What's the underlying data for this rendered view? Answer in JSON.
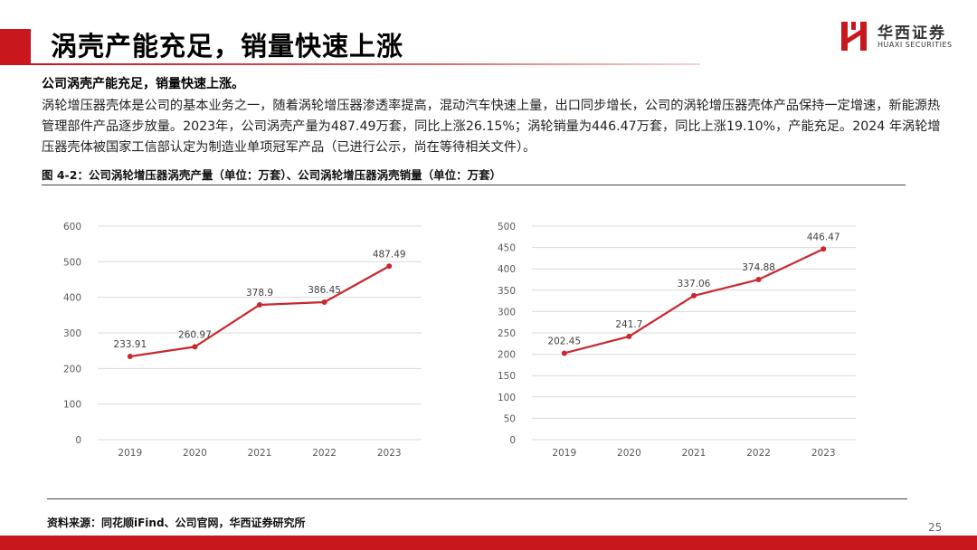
{
  "header": {
    "title": "涡壳产能充足，销量快速上涨",
    "logo_cn": "华西证券",
    "logo_en": "HUAXI SECURITIES",
    "accent_color": "#c8181e"
  },
  "content": {
    "subhead": "公司涡壳产能充足，销量快速上涨。",
    "paragraph": "涡轮增压器壳体是公司的基本业务之一，随着涡轮增压器渗透率提高，混动汽车快速上量，出口同步增长，公司的涡轮增压器壳体产品保持一定增速，新能源热管理部件产品逐步放量。2023年，公司涡壳产量为487.49万套，同比上涨26.15%；涡轮销量为446.47万套，同比上涨19.10%，产能充足。2024 年涡轮增压器壳体被国家工信部认定为制造业单项冠军产品（已进行公示，尚在等待相关文件）。",
    "figure_caption": "图 4-2：公司涡轮增压器涡壳产量（单位：万套）、公司涡轮增压器涡壳销量（单位：万套）",
    "source": "资料来源：同花顺iFind、公司官网，华西证券研究所",
    "page_number": "25"
  },
  "chart_data": [
    {
      "type": "line",
      "title": "",
      "xlabel": "",
      "ylabel": "",
      "categories": [
        "2019",
        "2020",
        "2021",
        "2022",
        "2023"
      ],
      "series": [
        {
          "values": [
            233.91,
            260.97,
            378.9,
            386.45,
            487.49
          ],
          "labels": [
            "233.91",
            "260.97",
            "378.9",
            "386.45",
            "487.49"
          ],
          "color": "#c8282e"
        }
      ],
      "ylim": [
        0,
        600
      ],
      "yticks": [
        "0",
        "100",
        "200",
        "300",
        "400",
        "500",
        "600"
      ],
      "grid": true,
      "legend": "none"
    },
    {
      "type": "line",
      "title": "",
      "xlabel": "",
      "ylabel": "",
      "categories": [
        "2019",
        "2020",
        "2021",
        "2022",
        "2023"
      ],
      "series": [
        {
          "values": [
            202.45,
            241.7,
            337.06,
            374.88,
            446.47
          ],
          "labels": [
            "202.45",
            "241.7",
            "337.06",
            "374.88",
            "446.47"
          ],
          "color": "#c8282e"
        }
      ],
      "ylim": [
        0,
        500
      ],
      "yticks": [
        "0",
        "50",
        "100",
        "150",
        "200",
        "250",
        "300",
        "350",
        "400",
        "450",
        "500"
      ],
      "grid": true,
      "legend": "none"
    }
  ]
}
